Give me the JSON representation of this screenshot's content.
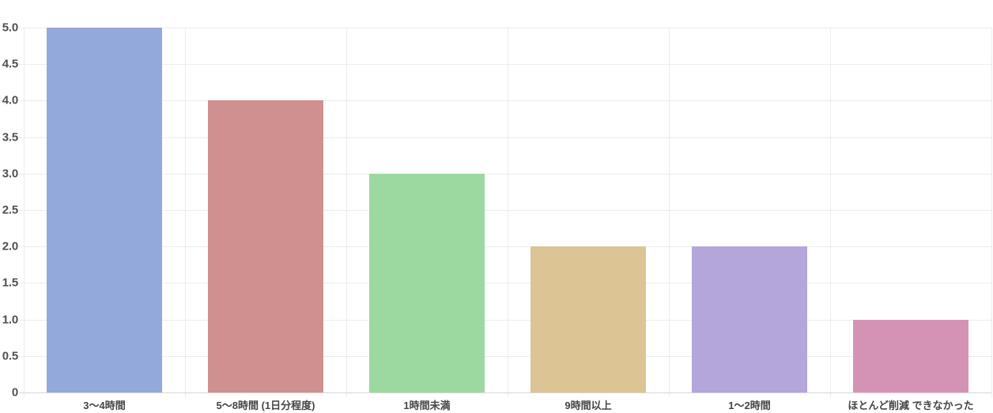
{
  "chart_data": {
    "type": "bar",
    "title": "",
    "xlabel": "",
    "ylabel": "",
    "categories": [
      "3〜4時間",
      "5〜8時間 (1日分程度)",
      "1時間未満",
      "9時間以上",
      "1〜2時間",
      "ほとんど削減 できなかった"
    ],
    "values": [
      5,
      4,
      3,
      2,
      2,
      1
    ],
    "bar_colors": [
      "#94a9db",
      "#d0908f",
      "#9cd9a0",
      "#dcc494",
      "#b4a5da",
      "#d493b5"
    ],
    "ylim": [
      0,
      5
    ],
    "ytick_step": 0.5,
    "ytick_labels": [
      "0",
      "0.5",
      "1.0",
      "1.5",
      "2.0",
      "2.5",
      "3.0",
      "3.5",
      "4.0",
      "4.5",
      "5.0"
    ],
    "grid": true,
    "legend": false,
    "legend_position": "none"
  },
  "style": {
    "background": "#ffffff",
    "gridline_color": "#ececec",
    "baseline_color": "#d6d6d6",
    "tick_color": "#e3e3e3",
    "ytick_label_color": "#4f4f4f",
    "xtick_label_color": "#454545"
  }
}
